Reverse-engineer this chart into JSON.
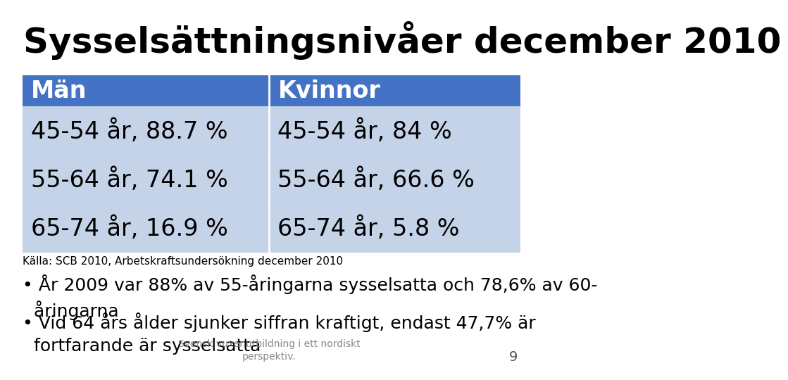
{
  "title": "Sysselsättningsnivåer december 2010",
  "title_fontsize": 36,
  "title_color": "#000000",
  "header_bg_color": "#4472C4",
  "header_text_color": "#FFFFFF",
  "header_left": "Män",
  "header_right": "Kvinnor",
  "row1_left": "45-54 år, 88.7 %",
  "row1_right": "45-54 år, 84 %",
  "row2_left": "55-64 år, 74.1 %",
  "row2_right": "55-64 år, 66.6 %",
  "row3_left": "65-74 år, 16.9 %",
  "row3_right": "65-74 år, 5.8 %",
  "row_bg": "#C5D3E8",
  "divider_color": "#7F9FC8",
  "cell_text_color": "#000000",
  "cell_fontsize": 24,
  "header_fontsize": 24,
  "source_text": "Källa: SCB 2010, Arbetskraftsundersökning december 2010",
  "source_fontsize": 11,
  "bullet1": "• År 2009 var 88% av 55-åringarna sysselsatta och 78,6% av 60-\n  åringarna",
  "bullet2": "• Vid 64 års ålder sjunker siffran kraftigt, endast 47,7% är\n  fortfarande är sysselsatta",
  "bullet_fontsize": 18,
  "footer_text": "Svensk vuxenutbildning i ett nordiskt\nperspektiv.",
  "footer_fontsize": 10,
  "footer_color": "#888888",
  "page_number": "9",
  "bg_color": "#FFFFFF"
}
